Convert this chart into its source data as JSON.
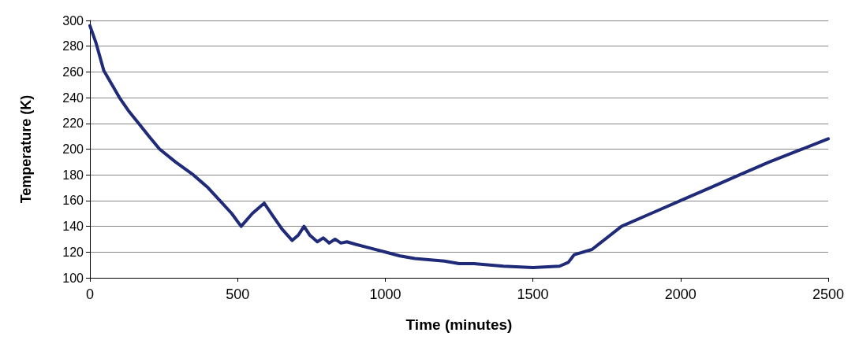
{
  "chart_data": {
    "type": "line",
    "xlabel": "Time (minutes)",
    "ylabel": "Temperature (K)",
    "x": [
      0,
      20,
      47,
      75,
      100,
      130,
      165,
      200,
      236,
      290,
      350,
      400,
      440,
      480,
      512,
      550,
      590,
      620,
      650,
      685,
      705,
      725,
      745,
      770,
      790,
      810,
      830,
      850,
      870,
      900,
      950,
      1000,
      1050,
      1100,
      1200,
      1250,
      1300,
      1400,
      1500,
      1590,
      1620,
      1640,
      1700,
      1800,
      1900,
      2000,
      2100,
      2200,
      2300,
      2400,
      2500
    ],
    "series": [
      {
        "color": "#1f2a78",
        "values": [
          296,
          283,
          261,
          250,
          240,
          230,
          220,
          210,
          200,
          190,
          180,
          170,
          160,
          150,
          140,
          150,
          158,
          148,
          138,
          129,
          133,
          140,
          133,
          128,
          131,
          127,
          130,
          127,
          128,
          126,
          123,
          120,
          117,
          115,
          113,
          111,
          111,
          109,
          108,
          109,
          112,
          118,
          122,
          140,
          150,
          160,
          170,
          180,
          190,
          199,
          208
        ]
      }
    ],
    "xlim": [
      0,
      2500
    ],
    "xticks": [
      0,
      500,
      1000,
      1500,
      2000,
      2500
    ],
    "ylim": [
      100,
      300
    ],
    "yticks": [
      100,
      120,
      140,
      160,
      180,
      200,
      220,
      240,
      260,
      280,
      300
    ],
    "grid": "y",
    "marker": "none",
    "line_style": "solid"
  }
}
